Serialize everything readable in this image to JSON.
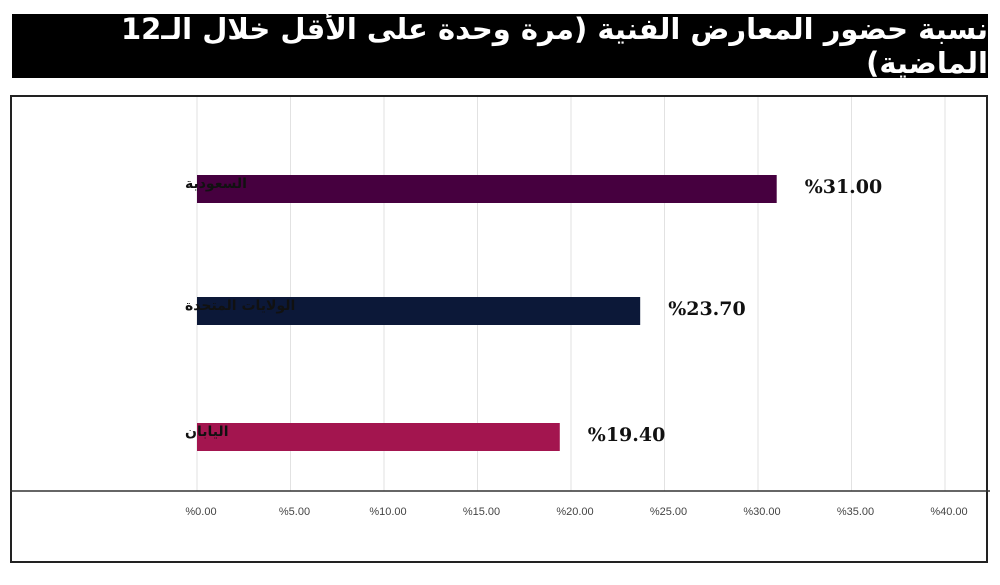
{
  "chart_data": {
    "type": "bar",
    "orientation": "horizontal",
    "title": "نسبة حضور المعارض الفنية (مرة وحدة على الأقل خلال الـ12 الماضية)",
    "categories": [
      "السعودية",
      "الولايات المتحدة",
      "اليابان"
    ],
    "values": [
      31.0,
      23.7,
      19.4
    ],
    "value_labels": [
      "%31.00",
      "%23.70",
      "%19.40"
    ],
    "colors": [
      "#46003f",
      "#0c1838",
      "#a3154f"
    ],
    "xlim": [
      0,
      40
    ],
    "xticks": [
      0,
      5,
      10,
      15,
      20,
      25,
      30,
      35,
      40
    ],
    "xtick_labels": [
      "%0.00",
      "%5.00",
      "%10.00",
      "%15.00",
      "%20.00",
      "%25.00",
      "%30.00",
      "%35.00",
      "%40.00"
    ],
    "grid": true,
    "legend": "none"
  }
}
